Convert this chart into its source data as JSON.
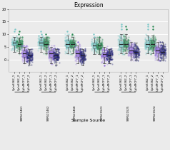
{
  "title": "Expression",
  "xlabel": "Sample Source",
  "ylabel": "",
  "ylim": [
    -5,
    20
  ],
  "yticks": [
    0,
    5,
    10,
    15,
    20
  ],
  "groups": [
    "SRR521461",
    "SRR521462",
    "SRR521468",
    "SRR521523",
    "SRR521525",
    "SRR521524"
  ],
  "sub_labels": [
    "UpInK562_1",
    "UpInK562_2",
    "UpInMCF7_1",
    "UpInMCF7_2"
  ],
  "colors": {
    "UpInK562_1": "#7ec8c8",
    "UpInK562_2": "#2e8b57",
    "UpInMCF7_1": "#9370db",
    "UpInMCF7_2": "#191970"
  },
  "box_data": {
    "SRR521461": {
      "UpInK562_1": {
        "q1": 5.5,
        "med": 6.5,
        "q3": 7.5,
        "whislo": 3.0,
        "whishi": 9.0,
        "fliers_high": [
          11,
          12
        ],
        "fliers_low": []
      },
      "UpInK562_2": {
        "q1": 5.0,
        "med": 6.2,
        "q3": 7.0,
        "whislo": 2.5,
        "whishi": 8.5,
        "fliers_high": [
          10,
          11
        ],
        "fliers_low": []
      },
      "UpInMCF7_1": {
        "q1": 1.0,
        "med": 2.5,
        "q3": 3.5,
        "whislo": -1.5,
        "whishi": 5.0,
        "fliers_high": [],
        "fliers_low": []
      },
      "UpInMCF7_2": {
        "q1": 0.5,
        "med": 1.5,
        "q3": 2.5,
        "whislo": -2.0,
        "whishi": 4.0,
        "fliers_high": [],
        "fliers_low": []
      }
    },
    "SRR521462": {
      "UpInK562_1": {
        "q1": 5.5,
        "med": 6.5,
        "q3": 7.5,
        "whislo": 3.0,
        "whishi": 9.0,
        "fliers_high": [
          10,
          11
        ],
        "fliers_low": []
      },
      "UpInK562_2": {
        "q1": 5.0,
        "med": 6.2,
        "q3": 7.2,
        "whislo": 2.5,
        "whishi": 8.5,
        "fliers_high": [
          10
        ],
        "fliers_low": []
      },
      "UpInMCF7_1": {
        "q1": 1.0,
        "med": 2.5,
        "q3": 3.5,
        "whislo": -1.5,
        "whishi": 5.0,
        "fliers_high": [],
        "fliers_low": []
      },
      "UpInMCF7_2": {
        "q1": 0.5,
        "med": 1.5,
        "q3": 2.5,
        "whislo": -2.0,
        "whishi": 4.0,
        "fliers_high": [],
        "fliers_low": []
      }
    },
    "SRR521468": {
      "UpInK562_1": {
        "q1": 5.0,
        "med": 6.2,
        "q3": 7.5,
        "whislo": 2.5,
        "whishi": 9.5,
        "fliers_high": [
          11
        ],
        "fliers_low": []
      },
      "UpInK562_2": {
        "q1": 5.0,
        "med": 6.0,
        "q3": 7.0,
        "whislo": 2.5,
        "whishi": 9.0,
        "fliers_high": [
          10
        ],
        "fliers_low": []
      },
      "UpInMCF7_1": {
        "q1": 1.0,
        "med": 2.5,
        "q3": 3.5,
        "whislo": -1.5,
        "whishi": 5.5,
        "fliers_high": [
          7
        ],
        "fliers_low": []
      },
      "UpInMCF7_2": {
        "q1": 0.0,
        "med": 1.5,
        "q3": 2.5,
        "whislo": -2.5,
        "whishi": 4.0,
        "fliers_high": [],
        "fliers_low": []
      }
    },
    "SRR521523": {
      "UpInK562_1": {
        "q1": 4.5,
        "med": 5.5,
        "q3": 6.5,
        "whislo": 2.0,
        "whishi": 8.5,
        "fliers_high": [
          9,
          10
        ],
        "fliers_low": []
      },
      "UpInK562_2": {
        "q1": 4.5,
        "med": 5.5,
        "q3": 6.5,
        "whislo": 2.0,
        "whishi": 8.5,
        "fliers_high": [
          9
        ],
        "fliers_low": []
      },
      "UpInMCF7_1": {
        "q1": 1.0,
        "med": 2.0,
        "q3": 3.0,
        "whislo": -1.5,
        "whishi": 5.0,
        "fliers_high": [],
        "fliers_low": [
          -2.5
        ]
      },
      "UpInMCF7_2": {
        "q1": 0.5,
        "med": 1.5,
        "q3": 2.5,
        "whislo": -1.5,
        "whishi": 4.0,
        "fliers_high": [],
        "fliers_low": []
      }
    },
    "SRR521525": {
      "UpInK562_1": {
        "q1": 5.0,
        "med": 6.0,
        "q3": 7.5,
        "whislo": 2.5,
        "whishi": 10.0,
        "fliers_high": [
          12,
          13,
          14
        ],
        "fliers_low": []
      },
      "UpInK562_2": {
        "q1": 5.0,
        "med": 6.0,
        "q3": 7.5,
        "whislo": 2.5,
        "whishi": 10.0,
        "fliers_high": [
          12,
          13
        ],
        "fliers_low": []
      },
      "UpInMCF7_1": {
        "q1": 2.5,
        "med": 3.5,
        "q3": 5.0,
        "whislo": 0.0,
        "whishi": 7.0,
        "fliers_high": [],
        "fliers_low": []
      },
      "UpInMCF7_2": {
        "q1": 2.0,
        "med": 3.0,
        "q3": 4.5,
        "whislo": 0.0,
        "whishi": 6.5,
        "fliers_high": [],
        "fliers_low": []
      }
    },
    "SRR521524": {
      "UpInK562_1": {
        "q1": 5.0,
        "med": 6.0,
        "q3": 7.5,
        "whislo": 2.5,
        "whishi": 9.5,
        "fliers_high": [
          12,
          13,
          14
        ],
        "fliers_low": []
      },
      "UpInK562_2": {
        "q1": 5.0,
        "med": 6.0,
        "q3": 7.5,
        "whislo": 2.5,
        "whishi": 9.5,
        "fliers_high": [
          12,
          13
        ],
        "fliers_low": []
      },
      "UpInMCF7_1": {
        "q1": 2.5,
        "med": 3.5,
        "q3": 5.0,
        "whislo": 0.0,
        "whishi": 7.0,
        "fliers_high": [],
        "fliers_low": []
      },
      "UpInMCF7_2": {
        "q1": 2.0,
        "med": 3.0,
        "q3": 4.5,
        "whislo": 0.0,
        "whishi": 6.5,
        "fliers_high": [],
        "fliers_low": []
      }
    }
  },
  "bg_color": "#ebebeb",
  "grid_color": "#ffffff",
  "n_scatter": 120,
  "scatter_alpha": 0.35,
  "scatter_size": 2.5
}
